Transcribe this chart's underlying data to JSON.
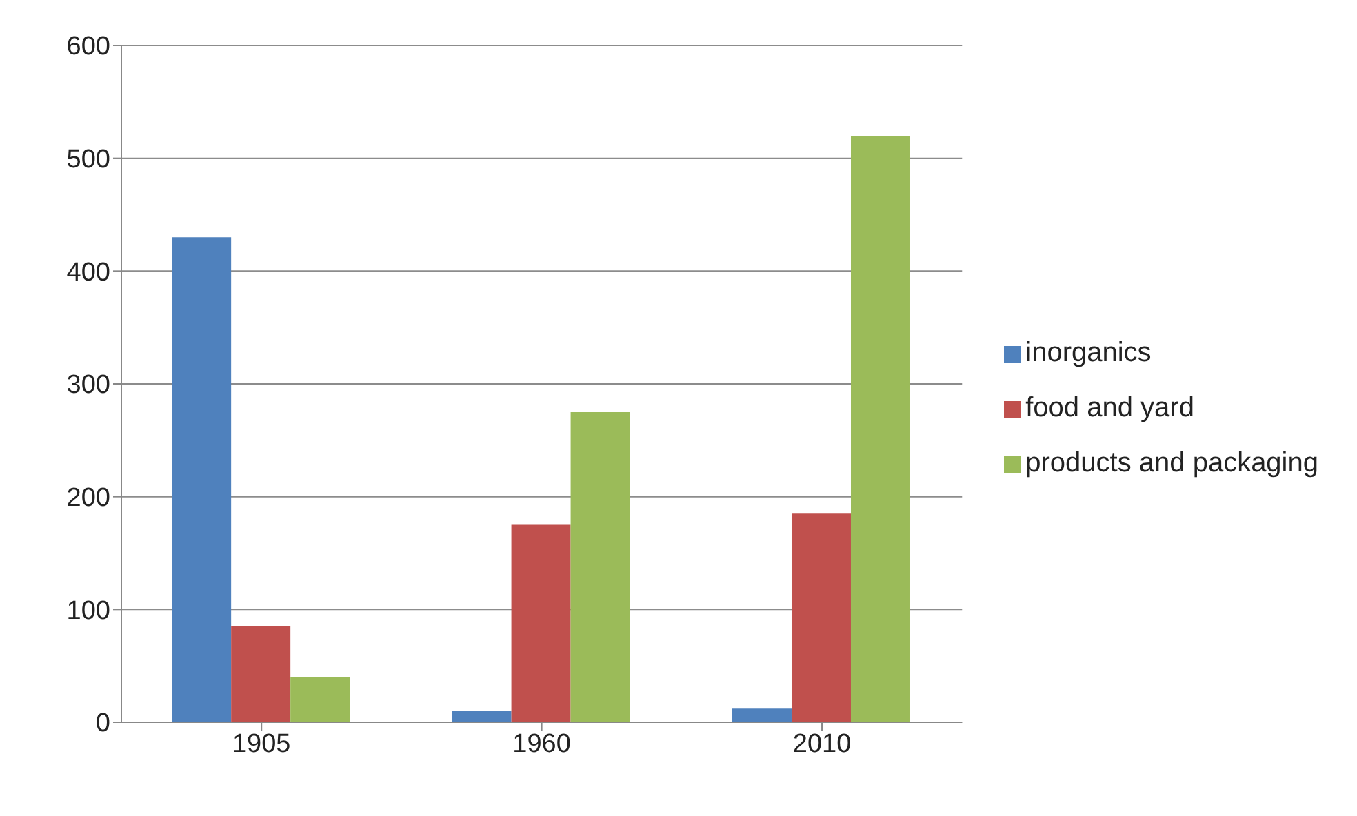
{
  "chart_data": {
    "type": "bar",
    "categories": [
      "1905",
      "1960",
      "2010"
    ],
    "series": [
      {
        "name": "inorganics",
        "color": "#4f81bd",
        "values": [
          430,
          10,
          12
        ]
      },
      {
        "name": "food and yard",
        "color": "#c0504d",
        "values": [
          85,
          175,
          185
        ]
      },
      {
        "name": "products and packaging",
        "color": "#9bbb59",
        "values": [
          40,
          275,
          520
        ]
      }
    ],
    "ylim": [
      0,
      600
    ],
    "yticks": [
      0,
      100,
      200,
      300,
      400,
      500,
      600
    ],
    "grid": "y",
    "legend": "right"
  }
}
